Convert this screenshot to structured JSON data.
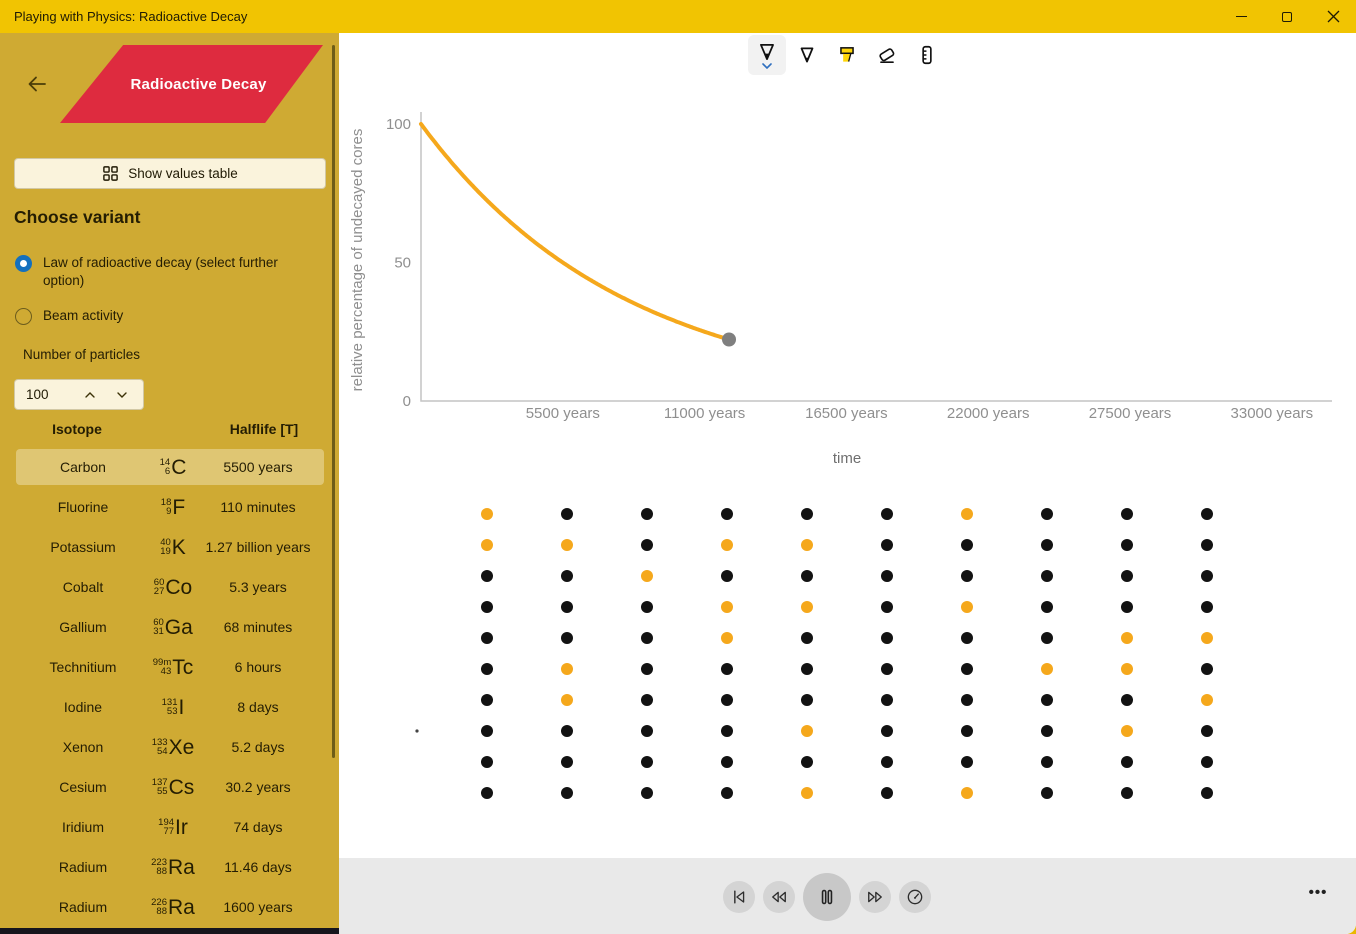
{
  "window": {
    "title": "Playing with Physics: Radioactive Decay"
  },
  "sidebar": {
    "logo_text": "Radioactive Decay",
    "show_values_table_label": "Show values table",
    "choose_variant_heading": "Choose variant",
    "variants": [
      {
        "label": "Law of radioactive decay (select further option)",
        "selected": true
      },
      {
        "label": "Beam activity",
        "selected": false
      }
    ],
    "number_of_particles_label": "Number of particles",
    "number_of_particles_value": "100",
    "isotope_table": {
      "headers": [
        "Isotope",
        "Halflife [T]"
      ],
      "rows": [
        {
          "name": "Carbon",
          "mass": "14",
          "atomic_number": "6",
          "symbol": "C",
          "halflife": "5500 years",
          "selected": true
        },
        {
          "name": "Fluorine",
          "mass": "18",
          "atomic_number": "9",
          "symbol": "F",
          "halflife": "110 minutes",
          "selected": false
        },
        {
          "name": "Potassium",
          "mass": "40",
          "atomic_number": "19",
          "symbol": "K",
          "halflife": "1.27 billion years",
          "selected": false
        },
        {
          "name": "Cobalt",
          "mass": "60",
          "atomic_number": "27",
          "symbol": "Co",
          "halflife": "5.3 years",
          "selected": false
        },
        {
          "name": "Gallium",
          "mass": "60",
          "atomic_number": "31",
          "symbol": "Ga",
          "halflife": "68 minutes",
          "selected": false
        },
        {
          "name": "Technitium",
          "mass": "99m",
          "atomic_number": "43",
          "symbol": "Tc",
          "halflife": "6 hours",
          "selected": false
        },
        {
          "name": "Iodine",
          "mass": "131",
          "atomic_number": "53",
          "symbol": "I",
          "halflife": "8 days",
          "selected": false
        },
        {
          "name": "Xenon",
          "mass": "133",
          "atomic_number": "54",
          "symbol": "Xe",
          "halflife": "5.2 days",
          "selected": false
        },
        {
          "name": "Cesium",
          "mass": "137",
          "atomic_number": "55",
          "symbol": "Cs",
          "halflife": "30.2 years",
          "selected": false
        },
        {
          "name": "Iridium",
          "mass": "194",
          "atomic_number": "77",
          "symbol": "Ir",
          "halflife": "74 days",
          "selected": false
        },
        {
          "name": "Radium",
          "mass": "223",
          "atomic_number": "88",
          "symbol": "Ra",
          "halflife": "11.46 days",
          "selected": false
        },
        {
          "name": "Radium",
          "mass": "226",
          "atomic_number": "88",
          "symbol": "Ra",
          "halflife": "1600 years",
          "selected": false
        }
      ]
    }
  },
  "ink_toolbar": {
    "tools": [
      "pen",
      "pencil",
      "highlighter",
      "eraser",
      "ruler"
    ],
    "selected_tool": "pen"
  },
  "chart_data": {
    "type": "line",
    "ylabel": "relative percentage of undecayed cores",
    "xlabel": "time",
    "y_ticks": [
      0,
      50,
      100
    ],
    "x_ticks": [
      {
        "years": 5500,
        "label": "5500 years"
      },
      {
        "years": 11000,
        "label": "11000 years"
      },
      {
        "years": 16500,
        "label": "16500 years"
      },
      {
        "years": 22000,
        "label": "22000 years"
      },
      {
        "years": 27500,
        "label": "27500 years"
      },
      {
        "years": 33000,
        "label": "33000 years"
      },
      {
        "years": 35200,
        "label": ""
      }
    ],
    "ylim": [
      0,
      100
    ],
    "xlim_years": [
      0,
      35200
    ],
    "grid": false,
    "series": [
      {
        "name": "undecayed percentage",
        "model": "exponential-decay",
        "start_percent": 100,
        "halflife_years": 5500,
        "t_end_years": 11947,
        "end_percent": 22.2,
        "color": "#F5A81C"
      }
    ],
    "current_point": {
      "t_years": 11947,
      "percent": 22.2,
      "dot_color": "#7F7F7F"
    },
    "axis_color": "#C4C4C4",
    "tick_label_color": "#8F8F8F"
  },
  "particles_grid": {
    "total": 100,
    "undecayed_count": 22,
    "undecayed_color": "#F5A81C",
    "decayed_color": "#121212",
    "cell_legend": {
      "u": "undecayed-orange",
      "d": "decayed-black"
    },
    "rows": [
      "uddddduddd",
      "uuduuddddd",
      "dduddddddd",
      "ddduududdd",
      "dddudddduu",
      "duddddduud",
      "dudddddddu",
      "ddddudddud",
      "dddddddddd",
      "ddddududdd"
    ]
  },
  "playback": {
    "buttons": [
      "skip-to-start",
      "rewind",
      "pause",
      "fast-forward",
      "playback-speed"
    ],
    "more_label": "•••"
  }
}
